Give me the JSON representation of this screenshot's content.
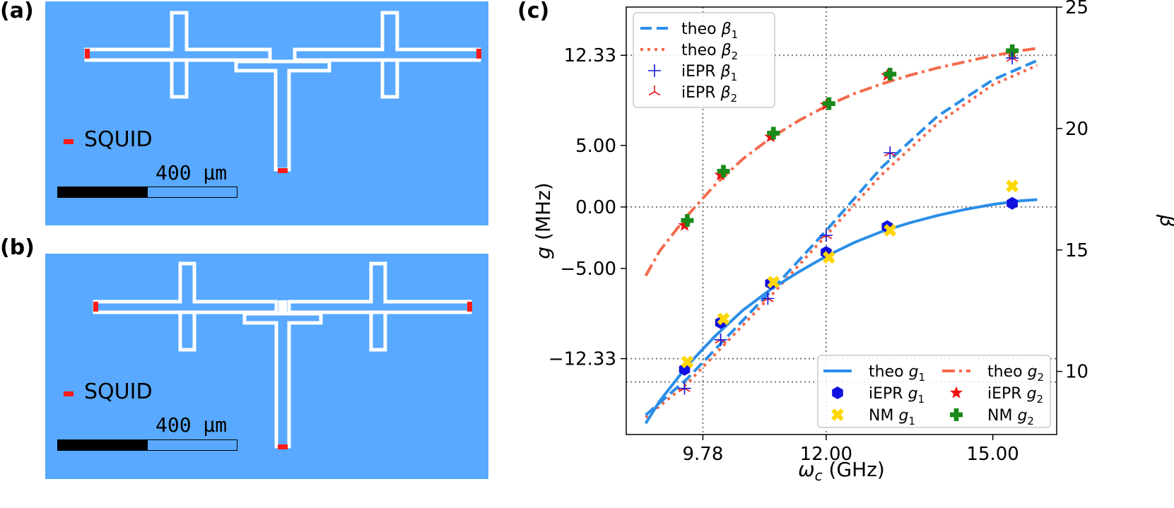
{
  "panels": {
    "a": {
      "label": "(a)",
      "legend_text": "SQUID",
      "scale_text": "400 μm",
      "scale_fill_fraction": 0.5
    },
    "b": {
      "label": "(b)",
      "legend_text": "SQUID",
      "scale_text": "400 μm",
      "scale_fill_fraction": 0.5
    },
    "c": {
      "label": "(c)"
    }
  },
  "colors": {
    "substrate": "#58a9ff",
    "metal": "#ffffff",
    "squid": "#ff1a1a",
    "theo_g1": "#2a8ee8",
    "theo_g2": "#f56a4b",
    "iEPR_g1": "#1010e0",
    "NM_g1": "#ffd700",
    "iEPR_g2": "#ee1111",
    "NM_g2": "#1a8a1a"
  },
  "chart_data": {
    "type": "line",
    "xlabel": "ωc (GHz)",
    "ylabel_left": "g (MHz)",
    "ylabel_right": "β",
    "xlim": [
      8.4,
      16.15
    ],
    "ylim_left": [
      -18.5,
      16.25
    ],
    "ylim_right": [
      7.4,
      25.0
    ],
    "x_ticks": [
      9.78,
      12.0,
      15.0
    ],
    "x_tick_labels": [
      "9.78",
      "12.00",
      "15.00"
    ],
    "y_left_ticks": [
      12.33,
      5.0,
      0.0,
      -5.0,
      -12.33
    ],
    "y_left_tick_labels": [
      "12.33",
      "5.00",
      "0.00",
      "−5.00",
      "−12.33"
    ],
    "y_right_ticks": [
      10,
      15,
      20,
      25
    ],
    "y_right_tick_labels": [
      "10",
      "15",
      "20",
      "25"
    ],
    "grid_x": [
      9.78,
      12.0
    ],
    "grid_y_left": [
      12.33,
      0.0,
      -12.33,
      -14.23
    ],
    "legend_beta": [
      {
        "label": "theo β₁"
      },
      {
        "label": "theo β₂"
      },
      {
        "label": "iEPR β₁"
      },
      {
        "label": "iEPR β₂"
      }
    ],
    "legend_g": [
      {
        "label": "theo g₁"
      },
      {
        "label": "theo g₂"
      },
      {
        "label": "iEPR g₁"
      },
      {
        "label": "iEPR g₂"
      },
      {
        "label": "NM g₁"
      },
      {
        "label": "NM g₂"
      }
    ],
    "series": [
      {
        "name": "theo g₁",
        "axis": "left",
        "style": "solid",
        "color_key": "theo_g1",
        "x": [
          8.75,
          9.0,
          9.5,
          10.0,
          10.5,
          11.0,
          11.5,
          12.0,
          12.5,
          13.0,
          13.5,
          14.0,
          14.5,
          15.0,
          15.5,
          15.8
        ],
        "y": [
          -17.6,
          -15.8,
          -12.9,
          -10.5,
          -8.4,
          -6.7,
          -5.3,
          -4.0,
          -2.9,
          -2.0,
          -1.3,
          -0.7,
          -0.2,
          0.2,
          0.5,
          0.6
        ]
      },
      {
        "name": "theo g₂",
        "axis": "left",
        "style": "dashdot",
        "color_key": "theo_g2",
        "x": [
          8.75,
          9.0,
          9.5,
          10.0,
          10.5,
          11.0,
          11.5,
          12.0,
          12.5,
          13.0,
          13.5,
          14.0,
          14.5,
          15.0,
          15.5,
          15.8
        ],
        "y": [
          -5.6,
          -3.6,
          -0.7,
          1.8,
          3.9,
          5.6,
          7.0,
          8.2,
          9.2,
          10.0,
          10.7,
          11.3,
          11.8,
          12.3,
          12.7,
          12.9
        ]
      },
      {
        "name": "theo β₁",
        "axis": "right",
        "style": "dashed",
        "color_key": "theo_g1",
        "x": [
          8.75,
          9.5,
          10.0,
          11.0,
          12.0,
          13.0,
          14.0,
          15.0,
          15.8
        ],
        "y": [
          8.2,
          9.7,
          10.9,
          13.3,
          15.8,
          18.4,
          20.5,
          22.0,
          22.8
        ]
      },
      {
        "name": "theo β₂",
        "axis": "right",
        "style": "dotted",
        "color_key": "theo_g2",
        "x": [
          8.75,
          9.5,
          10.0,
          11.0,
          12.0,
          13.0,
          14.0,
          15.0,
          15.8
        ],
        "y": [
          8.1,
          9.5,
          10.7,
          13.1,
          15.6,
          18.1,
          20.2,
          21.8,
          22.6
        ]
      },
      {
        "name": "iEPR g₁",
        "axis": "left",
        "marker": "hexagon",
        "color_key": "iEPR_g1",
        "x": [
          9.45,
          10.1,
          11.0,
          12.0,
          13.1,
          15.35
        ],
        "y": [
          -13.2,
          -9.4,
          -6.2,
          -3.7,
          -1.6,
          0.3
        ]
      },
      {
        "name": "NM g₁",
        "axis": "left",
        "marker": "x",
        "color_key": "NM_g1",
        "x": [
          9.5,
          10.15,
          11.05,
          12.05,
          13.15,
          15.35
        ],
        "y": [
          -12.6,
          -9.1,
          -6.1,
          -4.1,
          -1.9,
          1.7
        ]
      },
      {
        "name": "iEPR g₂",
        "axis": "left",
        "marker": "star",
        "color_key": "iEPR_g2",
        "x": [
          9.45,
          10.1,
          11.0,
          12.0,
          13.1,
          15.35
        ],
        "y": [
          -1.5,
          2.6,
          5.7,
          8.3,
          10.7,
          12.5
        ]
      },
      {
        "name": "NM g₂",
        "axis": "left",
        "marker": "plus",
        "color_key": "NM_g2",
        "x": [
          9.5,
          10.15,
          11.05,
          12.05,
          13.15,
          15.35
        ],
        "y": [
          -1.1,
          2.9,
          6.0,
          8.4,
          10.8,
          12.7
        ]
      },
      {
        "name": "iEPR β₁",
        "axis": "right",
        "marker": "cross",
        "color_key": "iEPR_g1",
        "x": [
          9.45,
          10.1,
          10.95,
          12.0,
          13.15,
          15.35
        ],
        "y": [
          9.3,
          11.3,
          13.0,
          15.6,
          19.0,
          22.9
        ]
      },
      {
        "name": "iEPR β₂",
        "axis": "right",
        "marker": "tri",
        "color_key": "iEPR_g2",
        "x": [
          9.45,
          10.1,
          10.95,
          12.0,
          13.15,
          15.35
        ],
        "y": [
          9.3,
          11.3,
          13.0,
          15.6,
          19.0,
          22.9
        ]
      }
    ]
  }
}
